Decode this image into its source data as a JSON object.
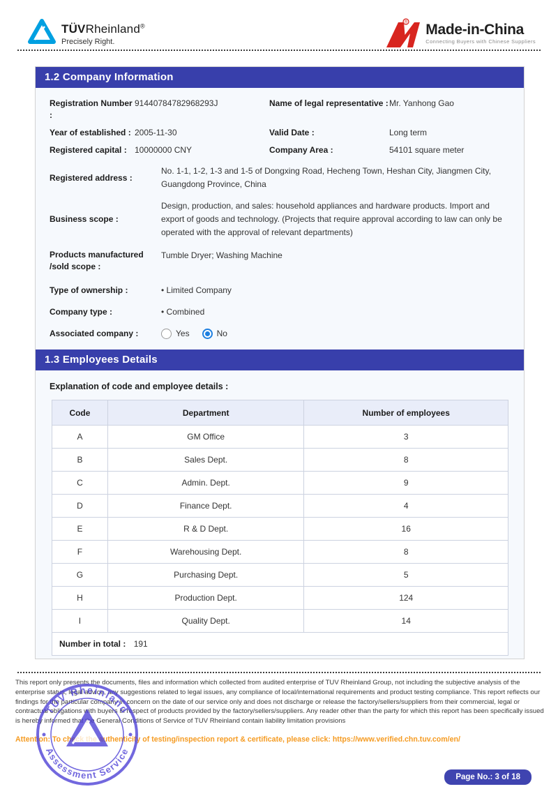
{
  "header": {
    "tuv_logo": {
      "name_bold": "TÜV",
      "name_light": "Rheinland",
      "reg": "®",
      "tagline": "Precisely Right."
    },
    "mic_logo": {
      "brand": "Made-in-China",
      "reg": "®",
      "tagline": "Connecting Buyers with Chinese Suppliers"
    }
  },
  "section_company": {
    "title": "1.2 Company Information",
    "fields_grid": [
      {
        "label": "Registration Number :",
        "value": "91440784782968293J"
      },
      {
        "label": "Name of legal representative :",
        "value": "Mr. Yanhong Gao"
      },
      {
        "label": "Year of established :",
        "value": "2005-11-30"
      },
      {
        "label": "Valid Date :",
        "value": "Long term"
      },
      {
        "label": "Registered capital :",
        "value": "10000000 CNY"
      },
      {
        "label": "Company Area :",
        "value": "54101 square meter"
      }
    ],
    "address": {
      "label": "Registered address :",
      "value": "No. 1-1, 1-2, 1-3 and 1-5 of Dongxing Road, Hecheng Town, Heshan City, Jiangmen City, Guangdong Province, China"
    },
    "business_scope": {
      "label": "Business scope :",
      "value": "Design, production, and sales: household appliances and hardware products. Import and export of goods and technology. (Projects that require approval according to law can only be operated with the approval of relevant departments)"
    },
    "products": {
      "label": "Products manufactured /sold scope :",
      "value": "Tumble Dryer; Washing Machine"
    },
    "ownership": {
      "label": "Type of ownership :",
      "value": "Limited Company"
    },
    "company_type": {
      "label": "Company type :",
      "value": "Combined"
    },
    "associated": {
      "label": "Associated company :",
      "options": [
        {
          "label": "Yes",
          "checked": false
        },
        {
          "label": "No",
          "checked": true
        }
      ]
    }
  },
  "section_employees": {
    "title": "1.3 Employees Details",
    "explanation": "Explanation of code and employee details :",
    "table": {
      "headers": [
        "Code",
        "Department",
        "Number of employees"
      ],
      "rows": [
        [
          "A",
          "GM Office",
          "3"
        ],
        [
          "B",
          "Sales Dept.",
          "8"
        ],
        [
          "C",
          "Admin. Dept.",
          "9"
        ],
        [
          "D",
          "Finance Dept.",
          "4"
        ],
        [
          "E",
          "R & D Dept.",
          "16"
        ],
        [
          "F",
          "Warehousing Dept.",
          "8"
        ],
        [
          "G",
          "Purchasing Dept.",
          "5"
        ],
        [
          "H",
          "Production Dept.",
          "124"
        ],
        [
          "I",
          "Quality Dept.",
          "14"
        ]
      ],
      "total_label": "Number in total :",
      "total_value": "191"
    }
  },
  "footer": {
    "disclaimer": "This report only presents the documents, files and information which collected from audited enterprise of TUV Rheinland Group, not including the subjective analysis of the enterprise status, legal advice, any suggestions related to legal issues, any compliance of local/international requirements and product testing compliance. This report reflects our findings for the particular company in concern on the date of our service only and does not discharge or release the factory/sellers/suppliers from their commercial, legal or contractual obligations with buyers in respect of products provided by the factory/sellers/suppliers. Any reader other than the party for which this report has been specifically issued is hereby informed that the General Conditions of Service of TUV Rheinland contain liability limitation provisions",
    "attention_prefix": "Attention: To check the authenticity of testing/inspection report & certificate, please click: ",
    "attention_url": "https://www.verified.chn.tuv.com/en/",
    "stamp": {
      "top_text": "TÜV Rheinland",
      "bottom_text": "Assessment Service"
    },
    "page_badge": "Page No.: 3 of 18"
  },
  "colors": {
    "banner": "#383fab",
    "table_header_bg": "#e9edf9",
    "content_bg": "#f6f9fd",
    "attention_orange": "#f59b22",
    "stamp_purple": "#4b3ed6",
    "tuv_blue": "#00a0e1",
    "mic_red": "#d8251f",
    "radio_blue": "#1e7fe0"
  }
}
